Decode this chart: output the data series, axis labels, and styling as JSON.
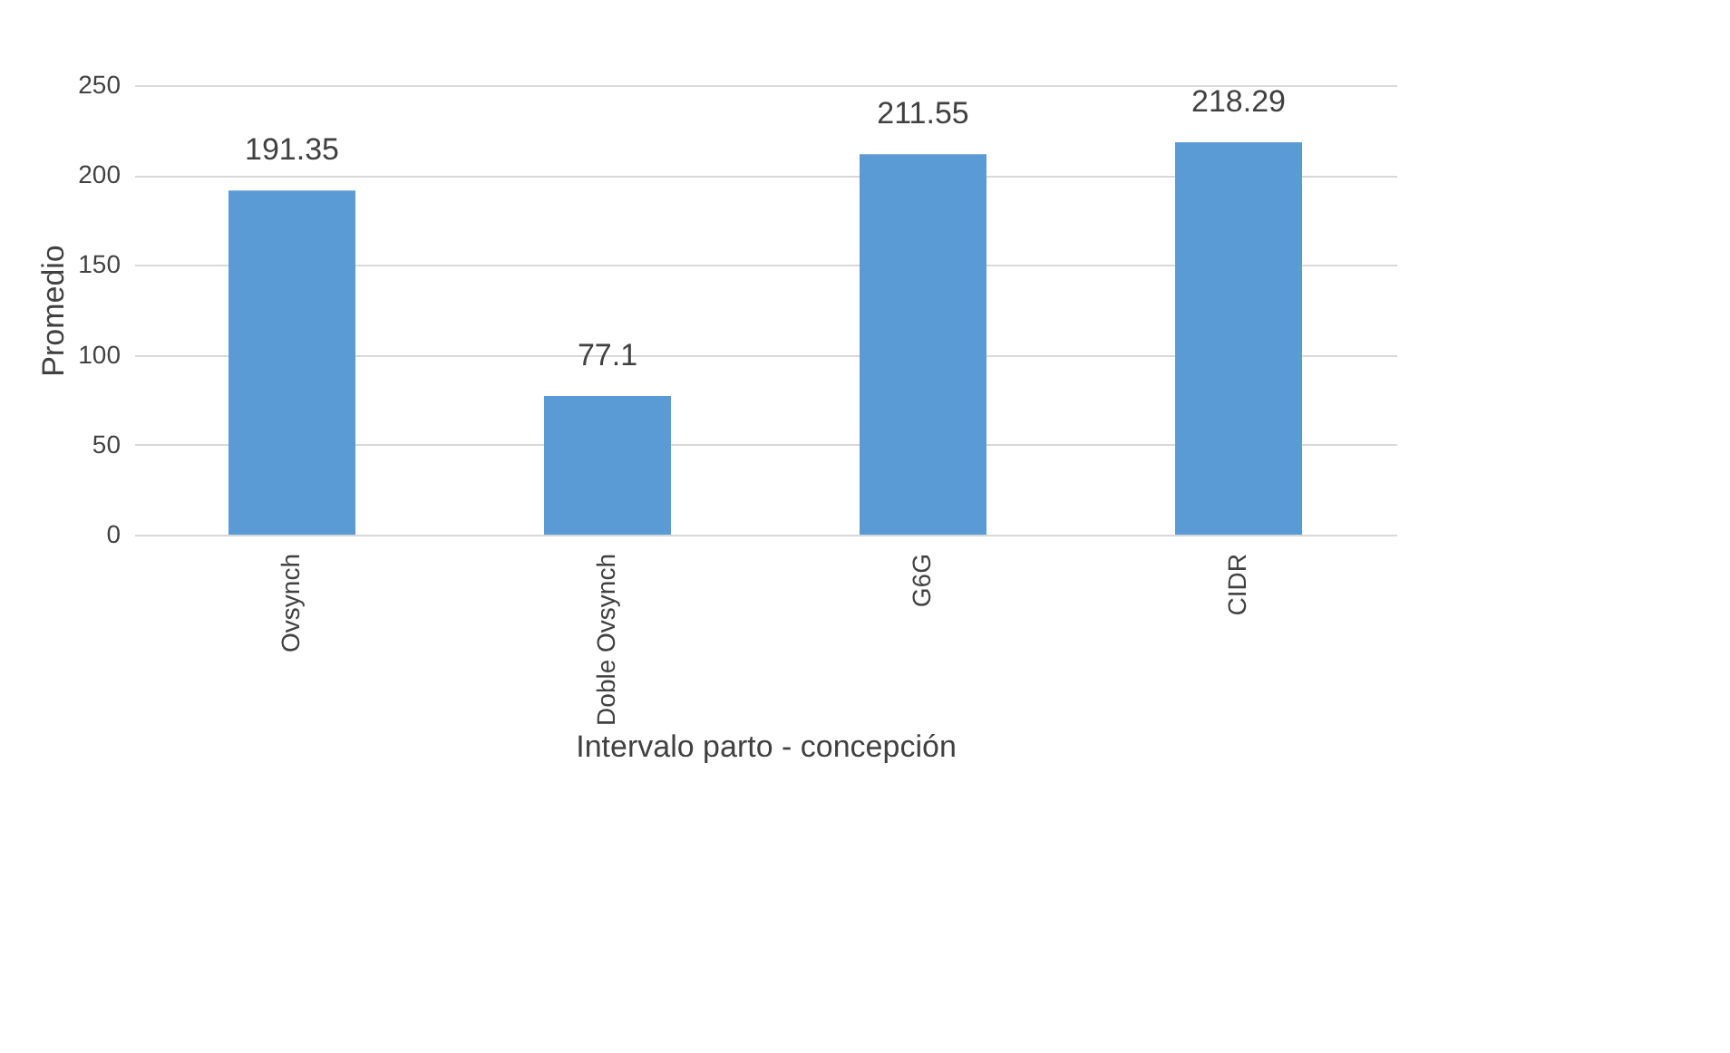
{
  "chart_data": {
    "type": "bar",
    "xlabel": "Intervalo parto - concepción",
    "ylabel": "Promedio",
    "categories": [
      "Ovsynch",
      "Doble Ovsynch",
      "G6G",
      "CIDR"
    ],
    "values": [
      191.35,
      77.1,
      211.55,
      218.29
    ],
    "color": "#5b9bd5",
    "ylim": [
      0,
      250
    ],
    "yticks": [
      0,
      50,
      100,
      150,
      200,
      250
    ],
    "grid": "y",
    "data_labels": true
  }
}
